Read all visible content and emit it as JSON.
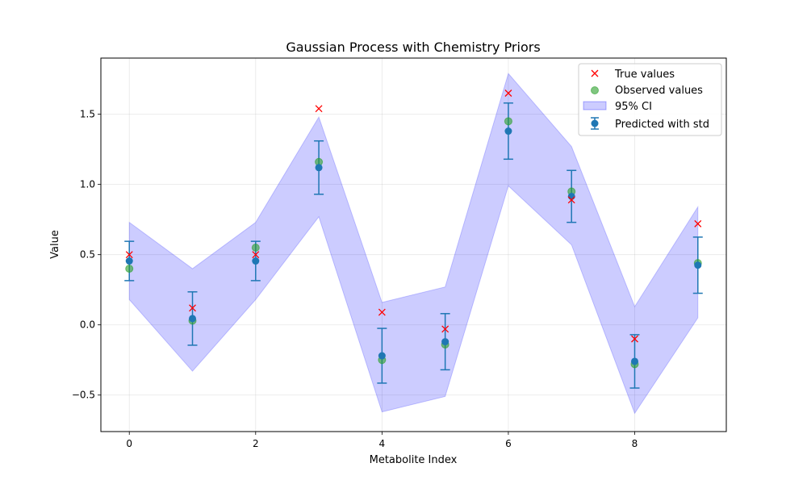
{
  "chart_data": {
    "type": "scatter",
    "title": "Gaussian Process with Chemistry Priors",
    "xlabel": "Metabolite Index",
    "ylabel": "Value",
    "xlim": [
      -0.45,
      9.45
    ],
    "ylim": [
      -0.76,
      1.9
    ],
    "x_ticks": [
      0,
      2,
      4,
      6,
      8
    ],
    "y_ticks": [
      -0.5,
      0.0,
      0.5,
      1.0,
      1.5
    ],
    "grid": true,
    "legend_position": "top-right",
    "x": [
      0,
      1,
      2,
      3,
      4,
      5,
      6,
      7,
      8,
      9
    ],
    "series": [
      {
        "name": "True values",
        "kind": "marker-x",
        "color": "#ff0000",
        "values": [
          0.5,
          0.12,
          0.5,
          1.54,
          0.09,
          -0.03,
          1.65,
          0.89,
          -0.1,
          0.72
        ]
      },
      {
        "name": "Observed values",
        "kind": "marker-circle",
        "color": "#2ca02c",
        "values": [
          0.4,
          0.03,
          0.55,
          1.16,
          -0.25,
          -0.14,
          1.45,
          0.95,
          -0.28,
          0.44
        ]
      },
      {
        "name": "95% CI",
        "kind": "band",
        "color": "#0000ff",
        "lower": [
          0.18,
          -0.33,
          0.18,
          0.77,
          -0.62,
          -0.51,
          0.99,
          0.57,
          -0.63,
          0.05
        ],
        "upper": [
          0.73,
          0.4,
          0.73,
          1.48,
          0.16,
          0.27,
          1.79,
          1.27,
          0.13,
          0.84
        ]
      },
      {
        "name": "Predicted with std",
        "kind": "errorbar",
        "color": "#1f77b4",
        "values": [
          0.455,
          0.045,
          0.455,
          1.12,
          -0.22,
          -0.12,
          1.38,
          0.915,
          -0.26,
          0.425
        ],
        "std": [
          0.14,
          0.19,
          0.14,
          0.19,
          0.195,
          0.2,
          0.2,
          0.185,
          0.19,
          0.2
        ]
      }
    ]
  }
}
